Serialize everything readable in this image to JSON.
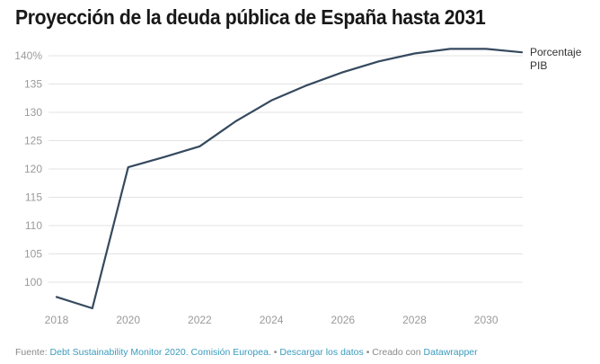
{
  "title": "Proyección de la deuda pública de España hasta 2031",
  "footer": {
    "source_label": "Fuente:",
    "source_link": "Debt Sustainability Monitor 2020. Comisión Europea.",
    "separator": "•",
    "download_link": "Descargar los datos",
    "created_label": "Creado con",
    "created_link": "Datawrapper"
  },
  "colors": {
    "line": "#35495e",
    "grid": "#e3e3e3",
    "link": "#3a9bbd"
  },
  "chart_data": {
    "type": "line",
    "title": "Proyección de la deuda pública de España hasta 2031",
    "xlabel": "",
    "ylabel": "",
    "x": [
      2018,
      2019,
      2020,
      2021,
      2022,
      2023,
      2024,
      2025,
      2026,
      2027,
      2028,
      2029,
      2030,
      2031
    ],
    "series": [
      {
        "name": "Porcentaje PIB",
        "label_lines": [
          "Porcentaje",
          "PIB"
        ],
        "values": [
          97.4,
          95.4,
          120.3,
          122.1,
          124.0,
          128.4,
          132.1,
          134.8,
          137.1,
          139.0,
          140.4,
          141.2,
          141.2,
          140.6
        ]
      }
    ],
    "y_ticks": [
      100,
      105,
      110,
      115,
      120,
      125,
      130,
      135,
      140
    ],
    "y_tick_labels": [
      "100",
      "105",
      "110",
      "115",
      "120",
      "125",
      "130",
      "135",
      "140%"
    ],
    "x_ticks": [
      2018,
      2020,
      2022,
      2024,
      2026,
      2028,
      2030
    ],
    "x_tick_labels": [
      "2018",
      "2020",
      "2022",
      "2024",
      "2026",
      "2028",
      "2030"
    ],
    "xlim": [
      2018,
      2031
    ],
    "ylim": [
      95.4,
      141.2
    ],
    "grid": true,
    "legend": "direct-label-right"
  }
}
